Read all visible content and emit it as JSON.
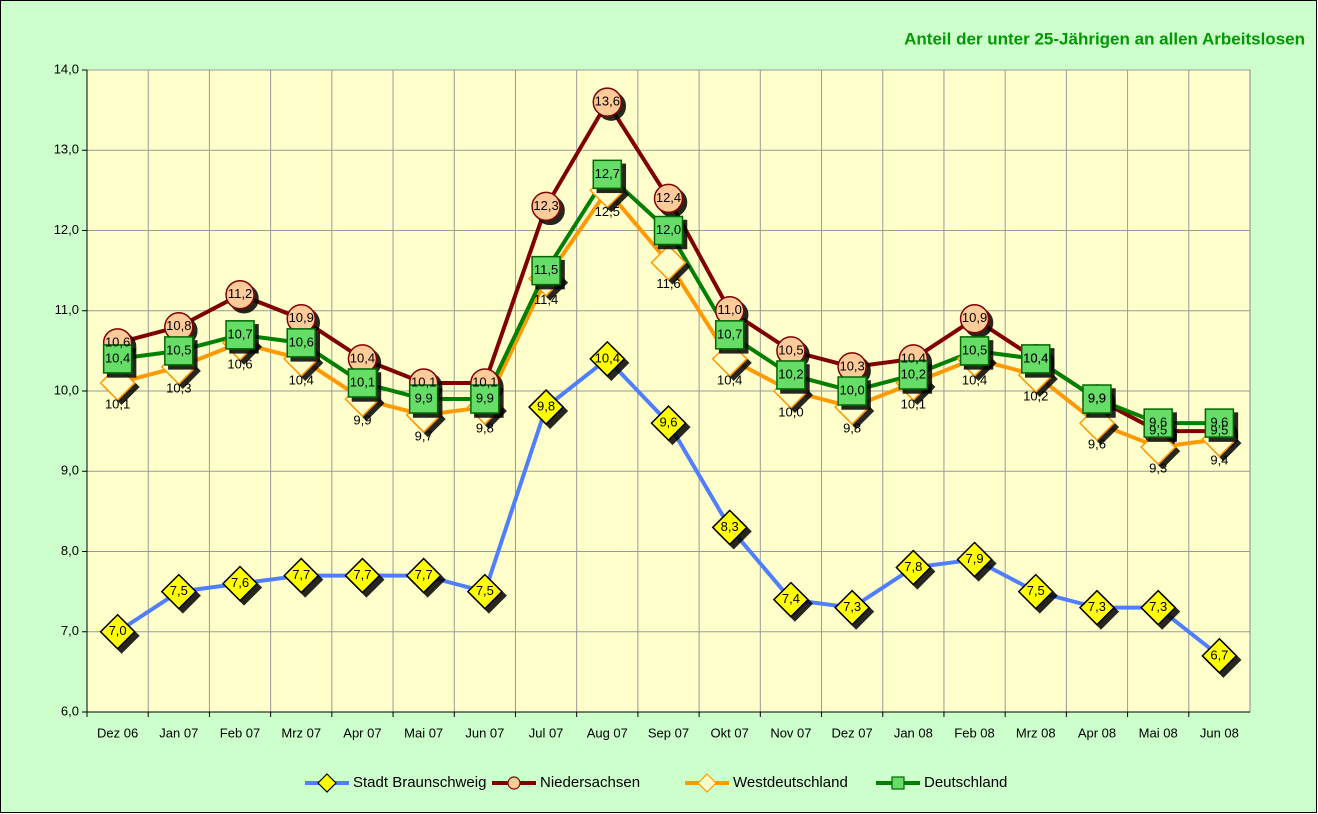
{
  "chart_data": {
    "type": "line",
    "title": "Anteil der unter 25-Jährigen an allen Arbeitslosen",
    "categories": [
      "Dez 06",
      "Jan 07",
      "Feb 07",
      "Mrz 07",
      "Apr 07",
      "Mai 07",
      "Jun 07",
      "Jul 07",
      "Aug 07",
      "Sep 07",
      "Okt 07",
      "Nov 07",
      "Dez 07",
      "Jan 08",
      "Feb 08",
      "Mrz 08",
      "Apr 08",
      "Mai 08",
      "Jun 08"
    ],
    "ylim": [
      6,
      14
    ],
    "yticks": [
      {
        "value": 6,
        "label": "6,0"
      },
      {
        "value": 7,
        "label": "7,0"
      },
      {
        "value": 8,
        "label": "8,0"
      },
      {
        "value": 9,
        "label": "9,0"
      },
      {
        "value": 10,
        "label": "10,0"
      },
      {
        "value": 11,
        "label": "11,0"
      },
      {
        "value": 12,
        "label": "12,0"
      },
      {
        "value": 13,
        "label": "13,0"
      },
      {
        "value": 14,
        "label": "14,0"
      }
    ],
    "grid": true,
    "legend": "bottom",
    "series": [
      {
        "name": "Stadt Braunschweig",
        "color": "#4f7fff",
        "marker": "diamond",
        "marker_fill": "#ffff00",
        "marker_stroke": "#000000",
        "values": [
          7.0,
          7.5,
          7.6,
          7.7,
          7.7,
          7.7,
          7.5,
          9.8,
          10.4,
          9.6,
          8.3,
          7.4,
          7.3,
          7.8,
          7.9,
          7.5,
          7.3,
          7.3,
          6.7
        ],
        "value_labels": [
          "7,0",
          "7,5",
          "7,6",
          "7,7",
          "7,7",
          "7,7",
          "7,5",
          "9,8",
          "10,4",
          "9,6",
          "8,3",
          "7,4",
          "7,3",
          "7,8",
          "7,9",
          "7,5",
          "7,3",
          "7,3",
          "6,7"
        ]
      },
      {
        "name": "Niedersachsen",
        "color": "#800000",
        "marker": "circle",
        "marker_fill": "#ffcc99",
        "marker_stroke": "#800000",
        "values": [
          10.6,
          10.8,
          11.2,
          10.9,
          10.4,
          10.1,
          10.1,
          12.3,
          13.6,
          12.4,
          11.0,
          10.5,
          10.3,
          10.4,
          10.9,
          10.4,
          9.9,
          9.5,
          9.5
        ],
        "value_labels": [
          "10,6",
          "10,8",
          "11,2",
          "10,9",
          "10,4",
          "10,1",
          "10,1",
          "12,3",
          "13,6",
          "12,4",
          "11,0",
          "10,5",
          "10,3",
          "10,4",
          "10,9",
          "10,4",
          "9,9",
          "9,5",
          "9,5"
        ]
      },
      {
        "name": "Westdeutschland",
        "color": "#ff9900",
        "marker": "diamond",
        "marker_fill": "#ffffcc",
        "marker_stroke": "#ff9900",
        "values": [
          10.1,
          10.3,
          10.6,
          10.4,
          9.9,
          9.7,
          9.8,
          11.4,
          12.5,
          11.6,
          10.4,
          10.0,
          9.8,
          10.1,
          10.4,
          10.2,
          9.6,
          9.3,
          9.4
        ],
        "value_labels": [
          "10,1",
          "10,3",
          "10,6",
          "10,4",
          "9,9",
          "9,7",
          "9,8",
          "11,4",
          "12,5",
          "11,6",
          "10,4",
          "10,0",
          "9,8",
          "10,1",
          "10,4",
          "10,2",
          "9,6",
          "9,3",
          "9,4"
        ]
      },
      {
        "name": "Deutschland",
        "color": "#008000",
        "marker": "square",
        "marker_fill": "#66dd66",
        "marker_stroke": "#006600",
        "values": [
          10.4,
          10.5,
          10.7,
          10.6,
          10.1,
          9.9,
          9.9,
          11.5,
          12.7,
          12.0,
          10.7,
          10.2,
          10.0,
          10.2,
          10.5,
          10.4,
          9.9,
          9.6,
          9.6
        ],
        "value_labels": [
          "10,4",
          "10,5",
          "10,7",
          "10,6",
          "10,1",
          "9,9",
          "9,9",
          "11,5",
          "12,7",
          "12,0",
          "10,7",
          "10,2",
          "10,0",
          "10,2",
          "10,5",
          "10,4",
          "9,9",
          "9,6",
          "9,6"
        ]
      }
    ]
  }
}
